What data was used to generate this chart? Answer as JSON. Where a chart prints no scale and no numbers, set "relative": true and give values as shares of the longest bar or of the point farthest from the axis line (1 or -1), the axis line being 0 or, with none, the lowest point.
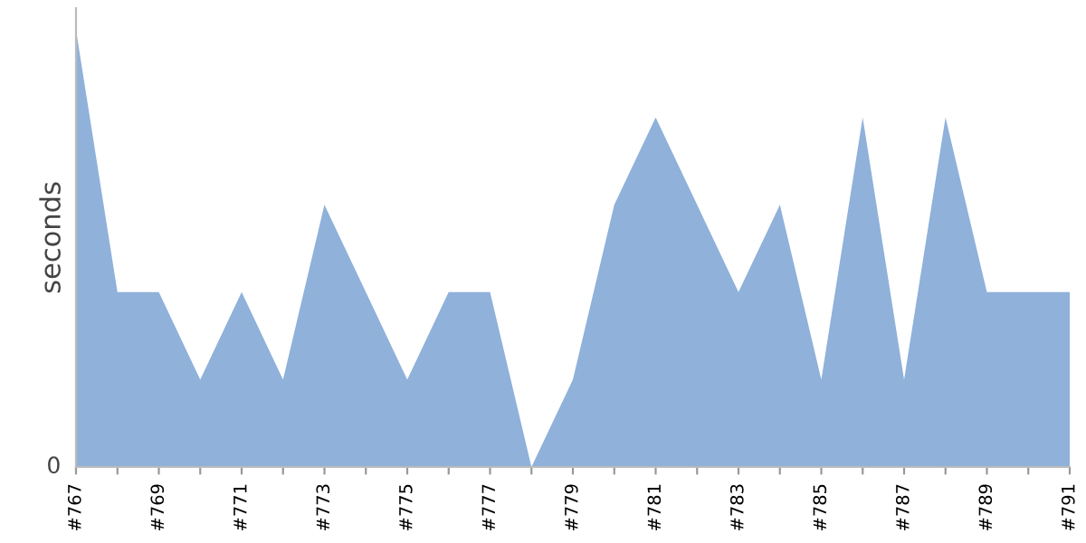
{
  "chart_data": {
    "type": "area",
    "ylabel": "seconds",
    "relative": true,
    "categories": [
      "#767",
      null,
      "#769",
      null,
      "#771",
      null,
      "#773",
      null,
      "#775",
      null,
      "#777",
      null,
      "#779",
      null,
      "#781",
      null,
      "#783",
      null,
      "#785",
      null,
      "#787",
      null,
      "#789",
      null,
      "#791"
    ],
    "series": [
      {
        "color": "#8fb1da",
        "values": [
          1,
          0.4,
          0.4,
          0.2,
          0.4,
          0.2,
          0.6,
          0.4,
          0.2,
          0.4,
          0.4,
          0,
          0.2,
          0.6,
          0.8,
          0.6,
          0.4,
          0.6,
          0.2,
          0.8,
          0.2,
          0.8,
          0.4,
          0.4,
          0.4
        ]
      }
    ],
    "annotations": [
      "0"
    ],
    "grid": false,
    "legend": false
  }
}
